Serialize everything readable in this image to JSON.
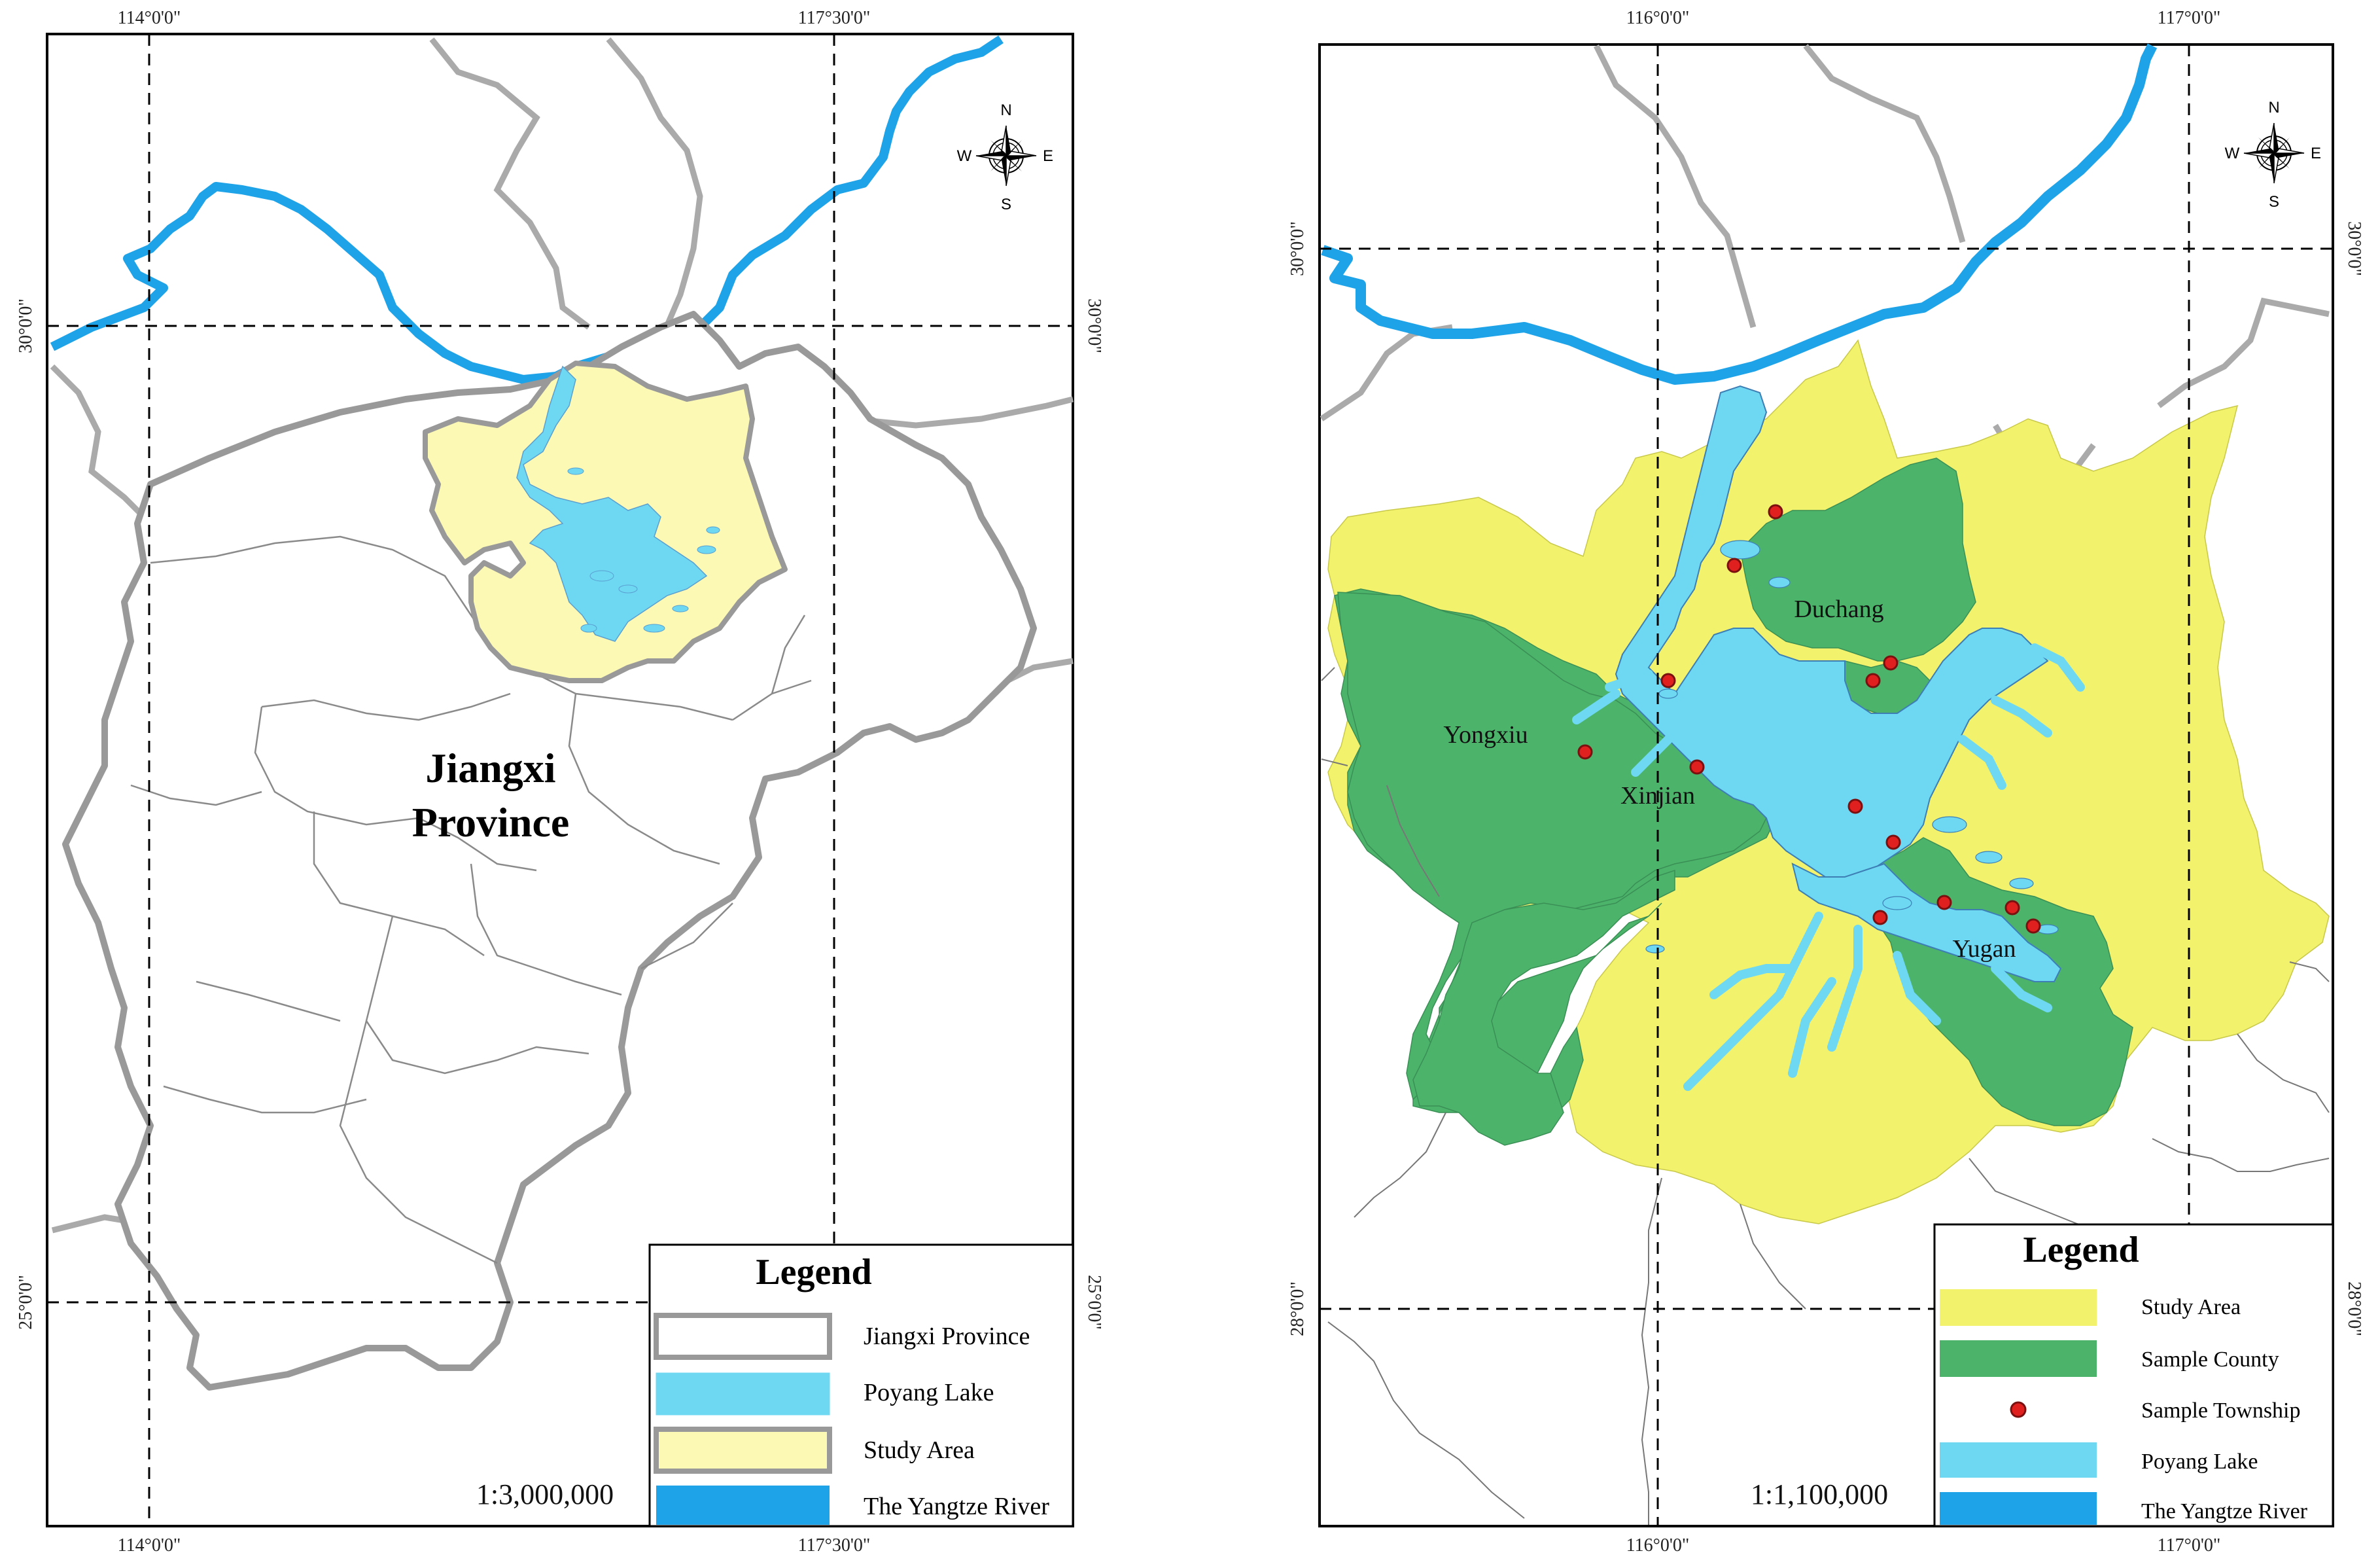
{
  "left_map": {
    "coords": {
      "top": [
        "114°0'0\"",
        "117°30'0\""
      ],
      "bottom": [
        "114°0'0\"",
        "117°30'0\""
      ],
      "left": [
        "30°0'0\"",
        "25°0'0\""
      ],
      "right": [
        "30°0'0\"",
        "25°0'0\""
      ]
    },
    "province_label_line1": "Jiangxi",
    "province_label_line2": "Province",
    "scale": "1:3,000,000",
    "compass": {
      "n": "N",
      "s": "S",
      "e": "E",
      "w": "W"
    },
    "legend": {
      "title": "Legend",
      "items": [
        {
          "label": "Jiangxi Province",
          "color": "#ffffff",
          "symbol": "outline"
        },
        {
          "label": "Poyang Lake",
          "color": "#6ed8f3",
          "symbol": "fill"
        },
        {
          "label": "Study Area",
          "color": "#fbf9b4",
          "symbol": "outline-fill"
        },
        {
          "label": "The Yangtze River",
          "color": "#1fa3e8",
          "symbol": "fill"
        }
      ]
    }
  },
  "right_map": {
    "coords": {
      "top": [
        "116°0'0\"",
        "117°0'0\""
      ],
      "bottom": [
        "116°0'0\"",
        "117°0'0\""
      ],
      "left": [
        "30°0'0\"",
        "28°0'0\""
      ],
      "right": [
        "30°0'0\"",
        "28°0'0\""
      ]
    },
    "county_labels": [
      "Duchang",
      "Yongxiu",
      "Xinjian",
      "Yugan"
    ],
    "scale": "1:1,100,000",
    "compass": {
      "n": "N",
      "s": "S",
      "e": "E",
      "w": "W"
    },
    "legend": {
      "title": "Legend",
      "items": [
        {
          "label": "Study Area",
          "color": "#f3f26c",
          "symbol": "fill"
        },
        {
          "label": "Sample County",
          "color": "#4cb36b",
          "symbol": "fill"
        },
        {
          "label": "Sample Township",
          "color": "#e0201e",
          "symbol": "dot"
        },
        {
          "label": "Poyang Lake",
          "color": "#6ed8f3",
          "symbol": "fill"
        },
        {
          "label": "The Yangtze River",
          "color": "#1fa3e8",
          "symbol": "fill"
        }
      ]
    }
  },
  "colors": {
    "lake": "#6ed8f3",
    "river": "#1fa3e8",
    "study_area_left": "#fbf9b4",
    "study_area_right": "#f3f26c",
    "sample_county": "#4cb36b",
    "township": "#e0201e",
    "boundary": "#9a9a9a"
  }
}
